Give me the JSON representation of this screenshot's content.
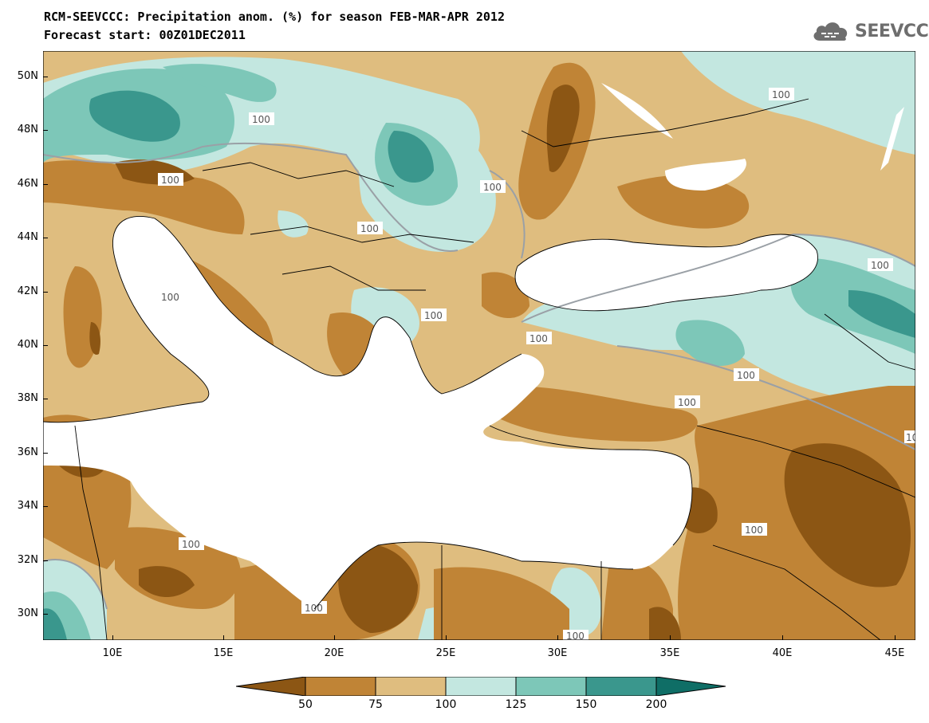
{
  "title": {
    "line1": "RCM-SEEVCCC: Precipitation anom. (%) for season FEB-MAR-APR 2012",
    "line2": "Forecast start: 00Z01DEC2011"
  },
  "logo": {
    "text": "SEEVCCC",
    "icon": "cloud-icon"
  },
  "map": {
    "lat_ticks": [
      "50N",
      "48N",
      "46N",
      "44N",
      "42N",
      "40N",
      "38N",
      "36N",
      "34N",
      "32N",
      "30N"
    ],
    "lon_ticks": [
      "10E",
      "15E",
      "20E",
      "25E",
      "30E",
      "35E",
      "40E",
      "45E"
    ],
    "contour_label": "100"
  },
  "legend": {
    "labels": [
      "50",
      "75",
      "100",
      "125",
      "150",
      "200"
    ],
    "colors": [
      "#8c5614",
      "#c08436",
      "#dfbd7f",
      "#c3e7e0",
      "#7dc7b8",
      "#3a978d",
      "#0f6e66"
    ]
  },
  "colors": {
    "ocean": "#ffffff",
    "dry_strong": "#8c5614",
    "dry": "#c08436",
    "dry_light": "#dfbd7f",
    "wet_light": "#c3e7e0",
    "wet": "#7dc7b8",
    "wet_strong": "#3a978d"
  }
}
